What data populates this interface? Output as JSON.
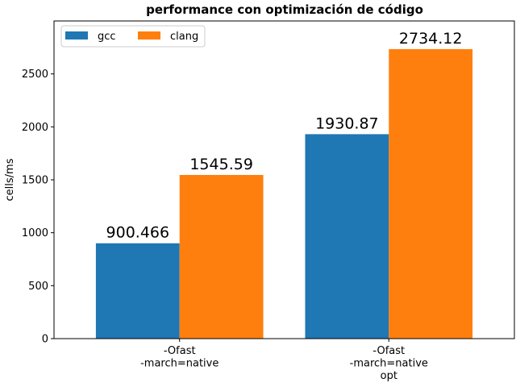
{
  "chart_data": {
    "type": "bar",
    "title": "performance con optimización de código",
    "xlabel": "",
    "ylabel": "cells/ms",
    "categories": [
      [
        "-Ofast",
        "-march=native"
      ],
      [
        "-Ofast",
        "-march=native",
        "opt"
      ]
    ],
    "series": [
      {
        "name": "gcc",
        "color": "#1f77b4",
        "values": [
          900.466,
          1930.87
        ],
        "labels": [
          "900.466",
          "1930.87"
        ]
      },
      {
        "name": "clang",
        "color": "#ff7f0e",
        "values": [
          1545.59,
          2734.12
        ],
        "labels": [
          "1545.59",
          "2734.12"
        ]
      }
    ],
    "ylim": [
      0,
      3000
    ],
    "yticks": [
      0,
      500,
      1000,
      1500,
      2000,
      2500
    ],
    "grid": false,
    "legend_position": "top-left"
  }
}
